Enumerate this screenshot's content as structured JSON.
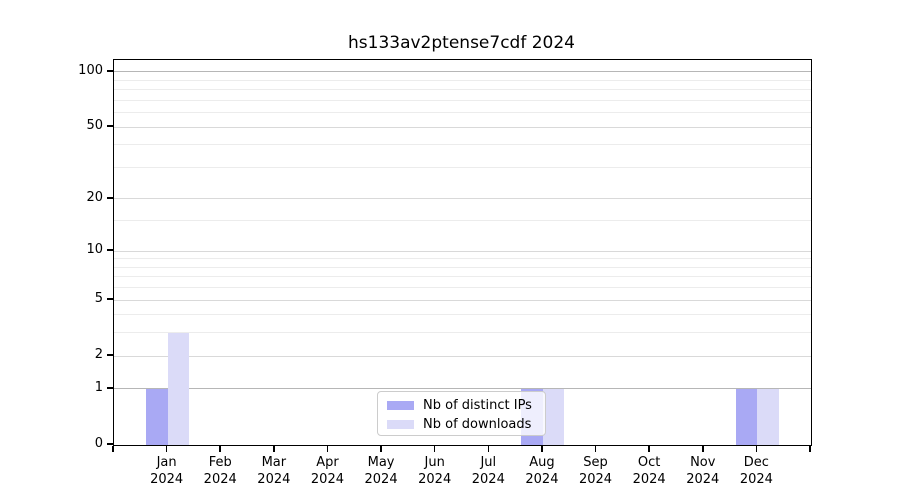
{
  "chart_data": {
    "type": "bar",
    "title": "hs133av2ptense7cdf 2024",
    "categories": [
      "Jan 2024",
      "Feb 2024",
      "Mar 2024",
      "Apr 2024",
      "May 2024",
      "Jun 2024",
      "Jul 2024",
      "Aug 2024",
      "Sep 2024",
      "Oct 2024",
      "Nov 2024",
      "Dec 2024"
    ],
    "series": [
      {
        "name": "Nb of distinct IPs",
        "color": "#a9a9f4",
        "values": [
          1,
          0,
          0,
          0,
          0,
          0,
          0,
          1,
          0,
          0,
          0,
          1
        ]
      },
      {
        "name": "Nb of downloads",
        "color": "#dbdbf8",
        "values": [
          3,
          0,
          0,
          0,
          0,
          0,
          0,
          1,
          0,
          0,
          0,
          1
        ]
      }
    ],
    "yscale": "log10(1+v)",
    "yticks": [
      0,
      1,
      2,
      5,
      10,
      20,
      50,
      100
    ],
    "ylim": [
      0,
      116
    ],
    "xlabel": "",
    "ylabel": "",
    "grid": {
      "strong_lines": [
        1,
        100
      ],
      "major_lines": [
        2,
        5,
        10,
        20,
        50
      ],
      "minor_lines": [
        3,
        4,
        6,
        7,
        8,
        9,
        15,
        30,
        40,
        60,
        70,
        80,
        90
      ],
      "strong_color": "#b6b6b6",
      "major_color": "#d9d9d9",
      "minor_color": "#ececec"
    },
    "legend": {
      "position": "lower center"
    }
  }
}
